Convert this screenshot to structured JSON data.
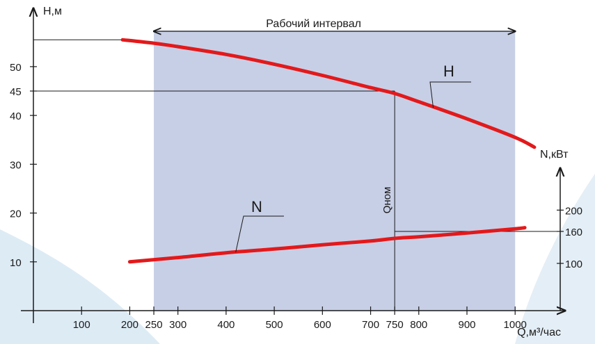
{
  "chart_data": {
    "type": "line",
    "colors": {
      "curves": "#e3191b",
      "working_band": "#c7cfe6",
      "background_swoosh": "#ddebf5",
      "axes": "#1a1a1a"
    },
    "x_axis": {
      "label": "Q,м³/час",
      "range": [
        0,
        1060
      ],
      "ticks": [
        100,
        200,
        250,
        300,
        400,
        500,
        600,
        700,
        750,
        800,
        900,
        1000
      ]
    },
    "y_left": {
      "label": "H,м",
      "range": [
        0,
        62
      ],
      "ticks": [
        10,
        20,
        30,
        40,
        45,
        50
      ]
    },
    "y_right": {
      "label": "N,кВт",
      "range": [
        0,
        500
      ],
      "ticks": [
        100,
        160,
        200
      ]
    },
    "working_interval": {
      "label": "Рабочий интервал",
      "from": 250,
      "to": 1000
    },
    "nominal_flow": {
      "label": "Qном",
      "q": 750
    },
    "series": [
      {
        "name": "H",
        "axis": "left",
        "x": [
          185,
          250,
          300,
          400,
          500,
          600,
          700,
          750,
          800,
          900,
          1000,
          1040
        ],
        "y": [
          55.5,
          54.8,
          54.1,
          52.5,
          50.5,
          48.2,
          45.7,
          44.5,
          42.8,
          39.3,
          35.5,
          33.5
        ]
      },
      {
        "name": "N",
        "axis": "right",
        "x": [
          200,
          300,
          400,
          500,
          600,
          700,
          750,
          800,
          900,
          1000,
          1020
        ],
        "y": [
          103,
          111,
          120,
          127,
          135,
          142,
          147,
          150,
          157,
          165,
          167
        ]
      }
    ]
  }
}
